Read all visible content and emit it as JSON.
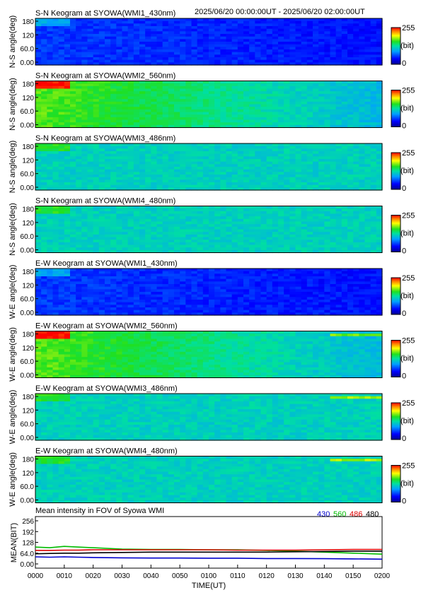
{
  "header": {
    "date_range": "2025/06/20 00:00:00UT - 2025/06/20 02:00:00UT"
  },
  "colorbar": {
    "max": "255",
    "unit": "(bit)",
    "min": "0"
  },
  "time_axis": {
    "ticks": [
      "0000",
      "0010",
      "0020",
      "0030",
      "0040",
      "0050",
      "0100",
      "0110",
      "0120",
      "0130",
      "0140",
      "0150",
      "0200"
    ],
    "label": "TIME(UT)"
  },
  "panels": [
    {
      "title": "S-N Keogram at SYOWA(WMI1_430nm)",
      "ylabel": "N-S angle(deg)",
      "yticks": [
        "180",
        "120",
        "60.0",
        "0.00"
      ],
      "palette": "blue"
    },
    {
      "title": "S-N Keogram at SYOWA(WMI2_560nm)",
      "ylabel": "N-S angle(deg)",
      "yticks": [
        "180",
        "120",
        "60.0",
        "0.00"
      ],
      "palette": "green"
    },
    {
      "title": "S-N Keogram at SYOWA(WMI3_486nm)",
      "ylabel": "N-S angle(deg)",
      "yticks": [
        "180",
        "120",
        "60.0",
        "0.00"
      ],
      "palette": "mid"
    },
    {
      "title": "S-N Keogram at SYOWA(WMI4_480nm)",
      "ylabel": "N-S angle(deg)",
      "yticks": [
        "180",
        "120",
        "60.0",
        "0.00"
      ],
      "palette": "mid"
    },
    {
      "title": "E-W Keogram at SYOWA(WMI1_430nm)",
      "ylabel": "W-E angle(deg)",
      "yticks": [
        "180",
        "120",
        "60.0",
        "0.00"
      ],
      "palette": "blue"
    },
    {
      "title": "E-W Keogram at SYOWA(WMI2_560nm)",
      "ylabel": "W-E angle(deg)",
      "yticks": [
        "180",
        "120",
        "60.0",
        "0.00"
      ],
      "palette": "green"
    },
    {
      "title": "E-W Keogram at SYOWA(WMI3_486nm)",
      "ylabel": "W-E angle(deg)",
      "yticks": [
        "180",
        "120",
        "60.0",
        "0.00"
      ],
      "palette": "mid"
    },
    {
      "title": "E-W Keogram at SYOWA(WMI4_480nm)",
      "ylabel": "W-E angle(deg)",
      "yticks": [
        "180",
        "120",
        "60.0",
        "0.00"
      ],
      "palette": "mid"
    }
  ],
  "chart_data": {
    "type": "line",
    "title": "Mean intensity in FOV of Syowa WMI",
    "xlabel": "TIME(UT)",
    "ylabel": "MEAN(BIT)",
    "yticks": [
      "256",
      "192",
      "128",
      "64.0",
      "0.00"
    ],
    "ylim": [
      0,
      256
    ],
    "xlim": [
      0,
      120
    ],
    "x": [
      0,
      5,
      10,
      15,
      20,
      30,
      40,
      50,
      60,
      70,
      80,
      90,
      100,
      110,
      120
    ],
    "series": [
      {
        "name": "430",
        "color": "#0000cc",
        "values": [
          42,
          40,
          42,
          40,
          38,
          36,
          35,
          35,
          34,
          34,
          32,
          32,
          31,
          30,
          28
        ]
      },
      {
        "name": "560",
        "color": "#00bb00",
        "values": [
          100,
          96,
          104,
          100,
          96,
          88,
          86,
          86,
          84,
          84,
          80,
          76,
          70,
          64,
          58
        ]
      },
      {
        "name": "486",
        "color": "#dd0000",
        "values": [
          80,
          80,
          82,
          82,
          84,
          84,
          84,
          84,
          84,
          82,
          82,
          82,
          84,
          86,
          86
        ]
      },
      {
        "name": "480",
        "color": "#000000",
        "values": [
          60,
          62,
          64,
          64,
          66,
          68,
          70,
          70,
          70,
          70,
          70,
          72,
          74,
          76,
          76
        ]
      }
    ]
  }
}
